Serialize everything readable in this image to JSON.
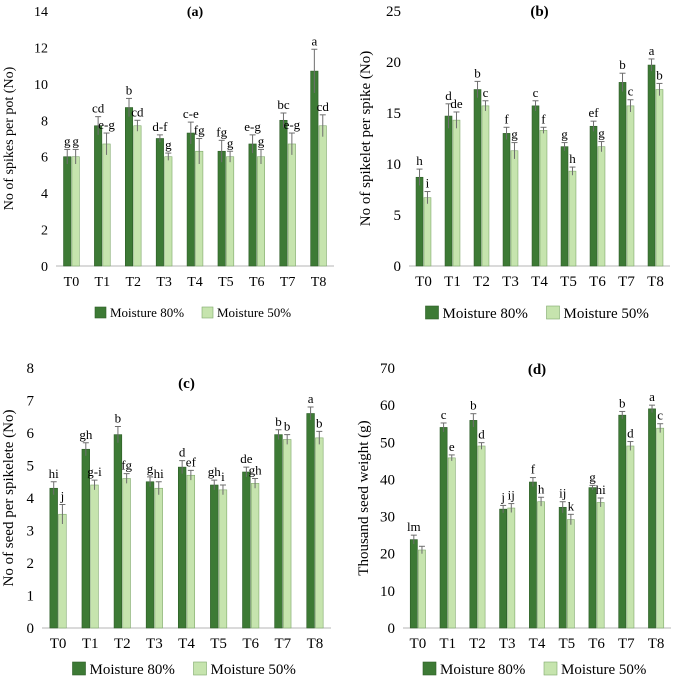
{
  "colors": {
    "moisture_80": "#3d7a35",
    "moisture_80_edge": "#2c5c26",
    "moisture_50": "#c6e4ae",
    "moisture_50_edge": "#7fa86b",
    "axis": "#b5b5b5",
    "error_bar": "#6e6e6e"
  },
  "chart_data": [
    {
      "type": "bar",
      "panel_label": "(a)",
      "title": "(a)",
      "ylabel": "No of spikes per pot (No)",
      "xlabel": "",
      "ylim": [
        0,
        14
      ],
      "yticks": [
        0,
        2,
        4,
        6,
        8,
        10,
        12,
        14
      ],
      "categories": [
        "T0",
        "T1",
        "T2",
        "T3",
        "T4",
        "T5",
        "T6",
        "T7",
        "T8"
      ],
      "legend_position": "bottom",
      "series": [
        {
          "name": "Moisture 80%",
          "values": [
            6.0,
            7.7,
            8.7,
            7.0,
            7.3,
            6.3,
            6.7,
            8.0,
            10.7
          ],
          "errors": [
            0.4,
            0.5,
            0.5,
            0.2,
            0.6,
            0.6,
            0.5,
            0.4,
            1.2
          ],
          "labels": [
            "g",
            "cd",
            "b",
            "d-f",
            "c-e",
            "fg",
            "e-g",
            "bc",
            "a"
          ]
        },
        {
          "name": "Moisture 50%",
          "values": [
            6.0,
            6.7,
            7.7,
            6.0,
            6.3,
            6.0,
            6.0,
            6.7,
            7.7
          ],
          "errors": [
            0.4,
            0.6,
            0.3,
            0.2,
            0.7,
            0.3,
            0.4,
            0.6,
            0.6
          ],
          "labels": [
            "g",
            "e-g",
            "cd",
            "g",
            "fg",
            "g",
            "g",
            "e-g",
            "cd"
          ]
        }
      ]
    },
    {
      "type": "bar",
      "panel_label": "(b)",
      "title": "(b)",
      "ylabel": "No of spikelet per spike (No)",
      "xlabel": "",
      "ylim": [
        0,
        25
      ],
      "yticks": [
        0,
        5,
        10,
        15,
        20,
        25
      ],
      "categories": [
        "T0",
        "T1",
        "T2",
        "T3",
        "T4",
        "T5",
        "T6",
        "T7",
        "T8"
      ],
      "legend_position": "bottom",
      "series": [
        {
          "name": "Moisture 80%",
          "values": [
            8.7,
            14.7,
            17.3,
            13.0,
            15.7,
            11.7,
            13.7,
            18.0,
            19.7
          ],
          "errors": [
            0.8,
            1.2,
            0.8,
            0.6,
            0.5,
            0.4,
            0.5,
            0.9,
            0.6
          ],
          "labels": [
            "h",
            "d",
            "b",
            "f",
            "c",
            "g",
            "ef",
            "b",
            "a"
          ]
        },
        {
          "name": "Moisture 50%",
          "values": [
            6.7,
            14.3,
            15.7,
            11.3,
            13.3,
            9.3,
            11.7,
            15.7,
            17.3
          ],
          "errors": [
            0.6,
            0.8,
            0.5,
            0.8,
            0.3,
            0.4,
            0.5,
            0.6,
            0.6
          ],
          "labels": [
            "i",
            "de",
            "c",
            "g",
            "f",
            "h",
            "g",
            "c",
            "b"
          ]
        }
      ]
    },
    {
      "type": "bar",
      "panel_label": "(c)",
      "title": "(c)",
      "ylabel": "No of seed per spikelete (No)",
      "xlabel": "",
      "ylim": [
        0,
        8
      ],
      "yticks": [
        0,
        1,
        2,
        3,
        4,
        5,
        6,
        7,
        8
      ],
      "categories": [
        "T0",
        "T1",
        "T2",
        "T3",
        "T4",
        "T5",
        "T6",
        "T7",
        "T8"
      ],
      "legend_position": "bottom",
      "series": [
        {
          "name": "Moisture 80%",
          "values": [
            4.3,
            5.5,
            5.95,
            4.5,
            4.95,
            4.4,
            4.8,
            5.95,
            6.6
          ],
          "errors": [
            0.2,
            0.2,
            0.25,
            0.15,
            0.2,
            0.15,
            0.15,
            0.15,
            0.2
          ],
          "labels": [
            "hi",
            "gh",
            "b",
            "g",
            "d",
            "gh",
            "de",
            "b",
            "a"
          ]
        },
        {
          "name": "Moisture 50%",
          "values": [
            3.5,
            4.4,
            4.6,
            4.3,
            4.7,
            4.25,
            4.45,
            5.8,
            5.85
          ],
          "errors": [
            0.3,
            0.15,
            0.15,
            0.2,
            0.15,
            0.15,
            0.15,
            0.15,
            0.2
          ],
          "labels": [
            "j",
            "g-i",
            "fg",
            "hi",
            "ef",
            "i",
            "gh",
            "b",
            "b"
          ]
        }
      ]
    },
    {
      "type": "bar",
      "panel_label": "(d)",
      "title": "(d)",
      "ylabel": "Thousand seed weight (g)",
      "xlabel": "",
      "ylim": [
        0,
        70
      ],
      "yticks": [
        0,
        10,
        20,
        30,
        40,
        50,
        60,
        70
      ],
      "categories": [
        "T0",
        "T1",
        "T2",
        "T3",
        "T4",
        "T5",
        "T6",
        "T7",
        "T8"
      ],
      "legend_position": "bottom",
      "series": [
        {
          "name": "Moisture 80%",
          "values": [
            23.8,
            54.0,
            55.9,
            32.0,
            39.3,
            32.5,
            37.8,
            57.3,
            59.0
          ],
          "errors": [
            1.2,
            1.2,
            1.8,
            1.0,
            1.2,
            1.5,
            0.6,
            1.0,
            1.0
          ],
          "labels": [
            "lm",
            "c",
            "b",
            "j",
            "f",
            "ij",
            "g",
            "b",
            "a"
          ]
        },
        {
          "name": "Moisture 50%",
          "values": [
            21.0,
            45.8,
            49.0,
            32.3,
            34.0,
            29.2,
            33.8,
            49.0,
            53.8
          ],
          "errors": [
            1.0,
            0.8,
            0.9,
            1.2,
            1.2,
            1.4,
            1.2,
            1.2,
            1.2
          ],
          "labels": [
            "",
            "e",
            "d",
            "ij",
            "h",
            "k",
            "hi",
            "d",
            "c"
          ]
        }
      ]
    }
  ]
}
